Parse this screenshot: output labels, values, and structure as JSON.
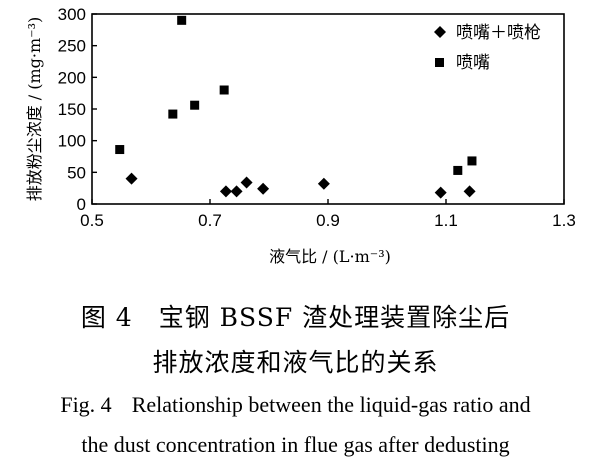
{
  "chart_data": {
    "type": "scatter",
    "xlabel": "液气比 / (L·m⁻³)",
    "ylabel": "排放粉尘浓度 / (mg·m⁻³)",
    "xlim": [
      0.5,
      1.3
    ],
    "ylim": [
      0,
      300
    ],
    "x_ticks": [
      "0.5",
      "0.7",
      "0.9",
      "1.1",
      "1.3"
    ],
    "y_ticks": [
      "0",
      "50",
      "100",
      "150",
      "200",
      "250",
      "300"
    ],
    "legend_position": "top-right",
    "series": [
      {
        "name": "喷嘴＋喷枪",
        "marker": "diamond",
        "points": [
          [
            0.567,
            40
          ],
          [
            0.727,
            20
          ],
          [
            0.745,
            20
          ],
          [
            0.762,
            34
          ],
          [
            0.79,
            24
          ],
          [
            0.893,
            32
          ],
          [
            1.091,
            18
          ],
          [
            1.14,
            20
          ]
        ]
      },
      {
        "name": "喷嘴",
        "marker": "square",
        "points": [
          [
            0.547,
            86
          ],
          [
            0.637,
            142
          ],
          [
            0.652,
            290
          ],
          [
            0.674,
            156
          ],
          [
            0.724,
            180
          ],
          [
            1.12,
            53
          ],
          [
            1.144,
            68
          ]
        ]
      }
    ]
  },
  "caption": {
    "fig_cn": "图 4",
    "title_cn_1": "宝钢 BSSF 渣处理装置除尘后",
    "title_cn_2": "排放浓度和液气比的关系",
    "fig_en": "Fig. 4",
    "title_en_1": "Relationship between the liquid-gas ratio and",
    "title_en_2": "the dust concentration in flue gas after dedusting"
  }
}
